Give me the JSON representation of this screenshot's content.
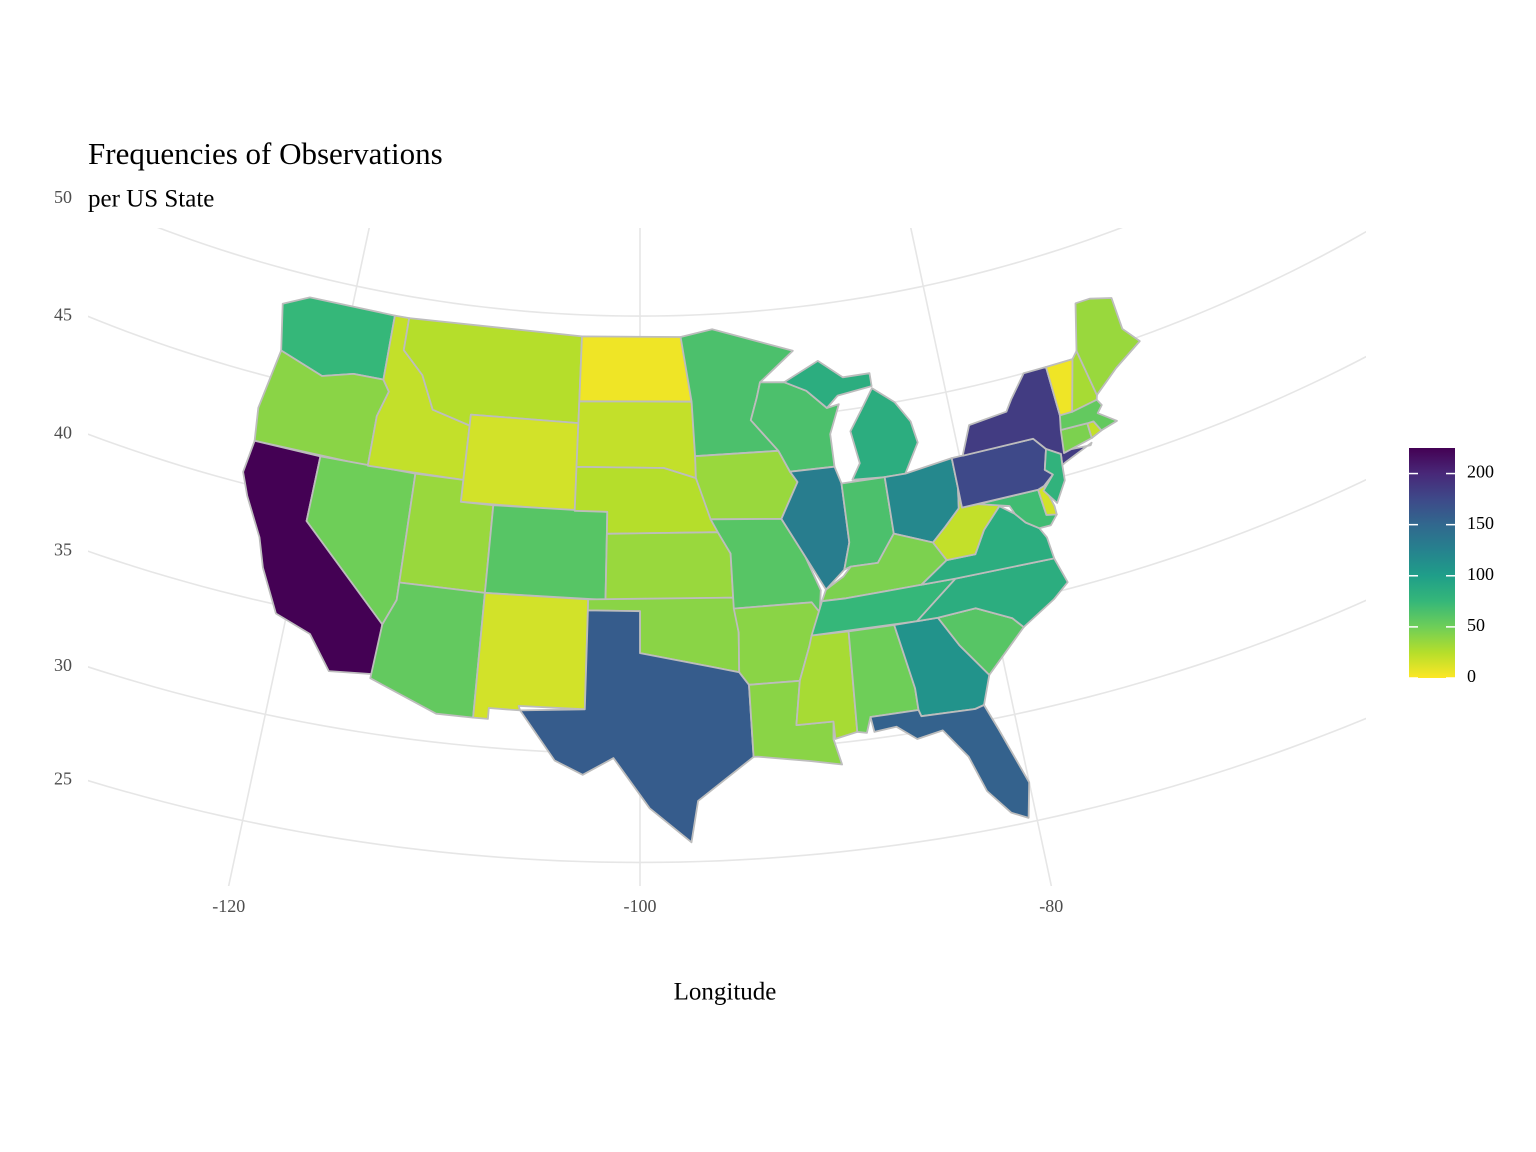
{
  "chart_data": {
    "type": "choropleth",
    "title": "Frequencies of Observations",
    "subtitle": "per US State",
    "x_label": "Longitude",
    "xticks": [
      -120,
      -100,
      -80
    ],
    "yticks": [
      25,
      30,
      35,
      40,
      45,
      50
    ],
    "grid": true,
    "values": [
      75,
      40,
      225,
      50,
      20,
      25,
      15,
      35,
      55,
      60,
      15,
      5,
      20,
      25,
      35,
      40,
      160,
      65,
      35,
      60,
      40,
      40,
      65,
      130,
      30,
      50,
      85,
      65,
      120,
      45,
      75,
      110,
      155,
      60,
      85,
      85,
      20,
      70,
      15,
      175,
      185,
      80,
      45,
      20,
      55,
      5,
      30,
      35
    ],
    "colorscale": [
      "#fde725",
      "#b5de2b",
      "#6ece58",
      "#35b779",
      "#1f9e89",
      "#26828e",
      "#31688e",
      "#3e4989",
      "#482878",
      "#440154"
    ],
    "border_color": "#bdbdbd",
    "clim": [
      0,
      225
    ],
    "cticks": [
      0,
      50,
      100,
      150,
      200
    ]
  }
}
